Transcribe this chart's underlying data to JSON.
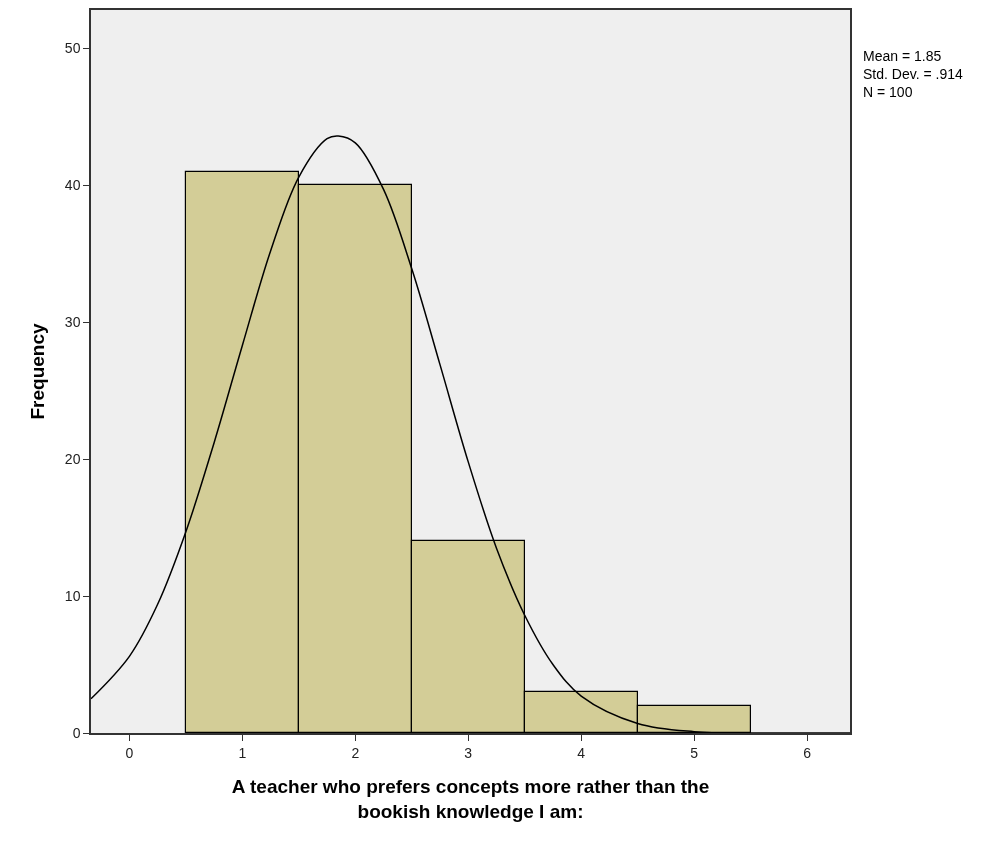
{
  "chart_data": {
    "type": "histogram",
    "xlabel": "A teacher who prefers concepts more rather than the\nbookish knowledge I am:",
    "ylabel": "Frequency",
    "annotations": [
      "Mean = 1.85\nStd. Dev. = .914\nN = 100"
    ],
    "bins": [
      0.5,
      1.5,
      2.5,
      3.5,
      4.5,
      5.5
    ],
    "values": [
      41,
      40,
      14,
      3,
      2
    ],
    "color": "#d3cd97",
    "series": [
      {
        "type": "line",
        "color": "#000000",
        "x": [
          -0.34,
          0,
          0.25,
          0.5,
          0.75,
          1.0,
          1.25,
          1.5,
          1.75,
          1.85,
          2.0,
          2.25,
          2.5,
          2.75,
          3.0,
          3.25,
          3.5,
          3.75,
          4.0,
          4.5,
          5.0,
          5.5,
          6.0,
          6.38
        ],
        "values": [
          2.5,
          5.6,
          9.4,
          14.7,
          21.2,
          28.3,
          35.2,
          40.6,
          43.4,
          43.6,
          43.1,
          39.7,
          33.9,
          26.9,
          19.8,
          13.5,
          8.6,
          5.0,
          2.7,
          0.7,
          0.1,
          0.0,
          0.0,
          0.0
        ]
      }
    ],
    "xlim": [
      -0.34,
      6.38
    ],
    "xticks": [
      0,
      1,
      2,
      3,
      4,
      5,
      6
    ],
    "ylim": [
      0,
      52.8
    ],
    "yticks": [
      0,
      10,
      20,
      30,
      40,
      50
    ],
    "grid": false,
    "marker": "none",
    "line_style": "solid"
  }
}
